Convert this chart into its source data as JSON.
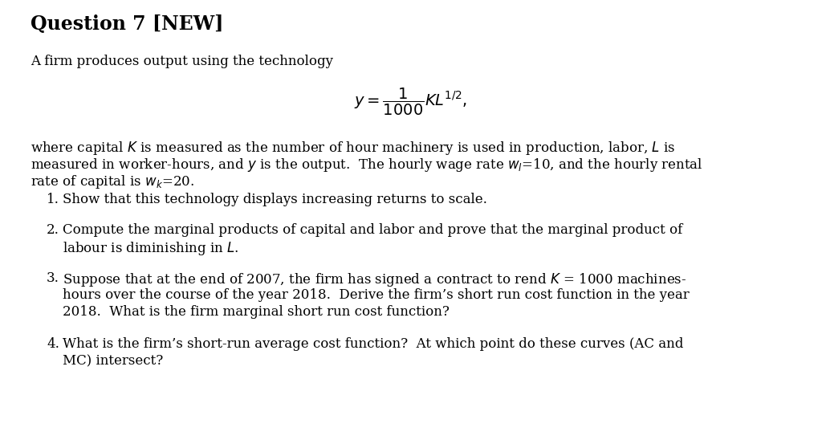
{
  "title": "Question 7 [NEW]",
  "background_color": "#ffffff",
  "text_color": "#000000",
  "intro_line": "A firm produces output using the technology",
  "equation": "$y = \\dfrac{1}{1000}KL^{1/2},$",
  "para_line1": "where capital $K$ is measured as the number of hour machinery is used in production, labor, $L$ is",
  "para_line2": "measured in worker-hours, and $y$ is the output.  The hourly wage rate $w_l$=10, and the hourly rental",
  "para_line3": "rate of capital is $w_k$=20.",
  "item1_line1": "Show that this technology displays increasing returns to scale.",
  "item2_line1": "Compute the marginal products of capital and labor and prove that the marginal product of",
  "item2_line2": "labour is diminishing in $L$.",
  "item3_line1": "Suppose that at the end of 2007, the firm has signed a contract to rend $K$ = 1000 machines-",
  "item3_line2": "hours over the course of the year 2018.  Derive the firm’s short run cost function in the year",
  "item3_line3": "2018.  What is the firm marginal short run cost function?",
  "item4_line1": "What is the firm’s short-run average cost function?  At which point do these curves (AC and",
  "item4_line2": "MC) intersect?",
  "title_fontsize": 17,
  "body_fontsize": 12,
  "eq_fontsize": 14
}
